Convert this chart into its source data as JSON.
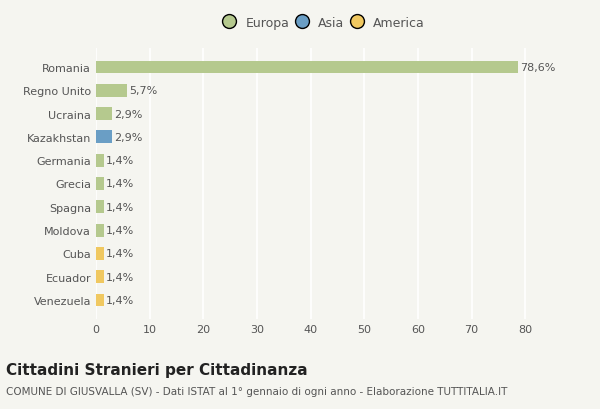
{
  "countries": [
    "Romania",
    "Regno Unito",
    "Ucraina",
    "Kazakhstan",
    "Germania",
    "Grecia",
    "Spagna",
    "Moldova",
    "Cuba",
    "Ecuador",
    "Venezuela"
  ],
  "values": [
    78.6,
    5.7,
    2.9,
    2.9,
    1.4,
    1.4,
    1.4,
    1.4,
    1.4,
    1.4,
    1.4
  ],
  "labels": [
    "78,6%",
    "5,7%",
    "2,9%",
    "2,9%",
    "1,4%",
    "1,4%",
    "1,4%",
    "1,4%",
    "1,4%",
    "1,4%",
    "1,4%"
  ],
  "colors": [
    "#b5c98e",
    "#b5c98e",
    "#b5c98e",
    "#6a9ec5",
    "#b5c98e",
    "#b5c98e",
    "#b5c98e",
    "#b5c98e",
    "#f0c860",
    "#f0c860",
    "#f0c860"
  ],
  "legend_labels": [
    "Europa",
    "Asia",
    "America"
  ],
  "legend_colors": [
    "#b5c98e",
    "#6a9ec5",
    "#f0c860"
  ],
  "title": "Cittadini Stranieri per Cittadinanza",
  "subtitle": "COMUNE DI GIUSVALLA (SV) - Dati ISTAT al 1° gennaio di ogni anno - Elaborazione TUTTITALIA.IT",
  "xlim": [
    0,
    85
  ],
  "xticks": [
    0,
    10,
    20,
    30,
    40,
    50,
    60,
    70,
    80
  ],
  "background_color": "#f5f5f0",
  "grid_color": "#ffffff",
  "bar_height": 0.55,
  "title_fontsize": 11,
  "subtitle_fontsize": 7.5,
  "label_fontsize": 8,
  "tick_fontsize": 8,
  "legend_fontsize": 9
}
